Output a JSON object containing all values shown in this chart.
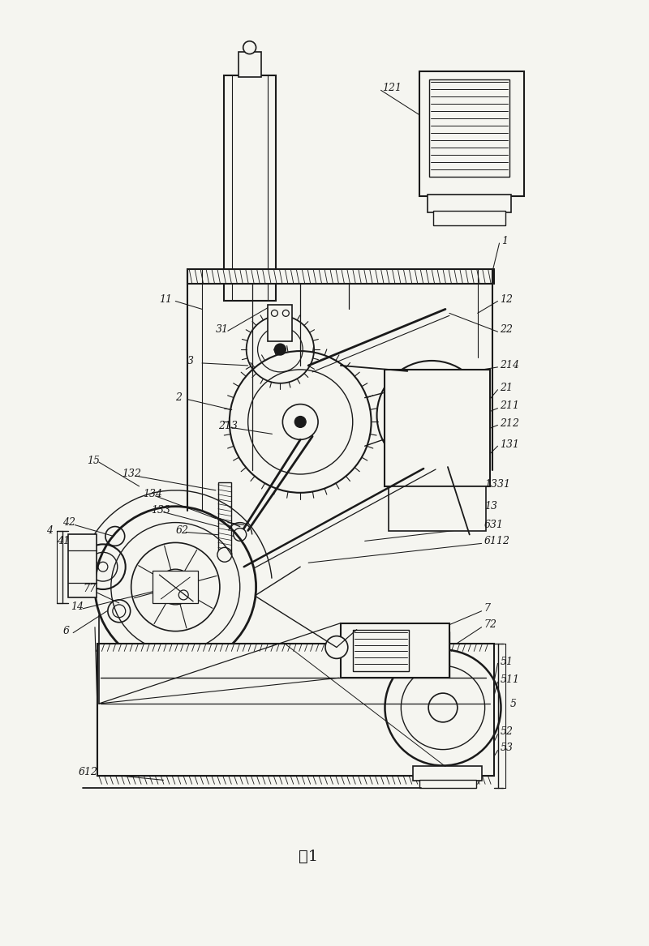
{
  "title": "图1",
  "bg_color": "#f5f5f0",
  "line_color": "#1a1a1a",
  "label_color": "#1a1a1a",
  "fig_width": 8.0,
  "fig_height": 11.67,
  "dpi": 100
}
